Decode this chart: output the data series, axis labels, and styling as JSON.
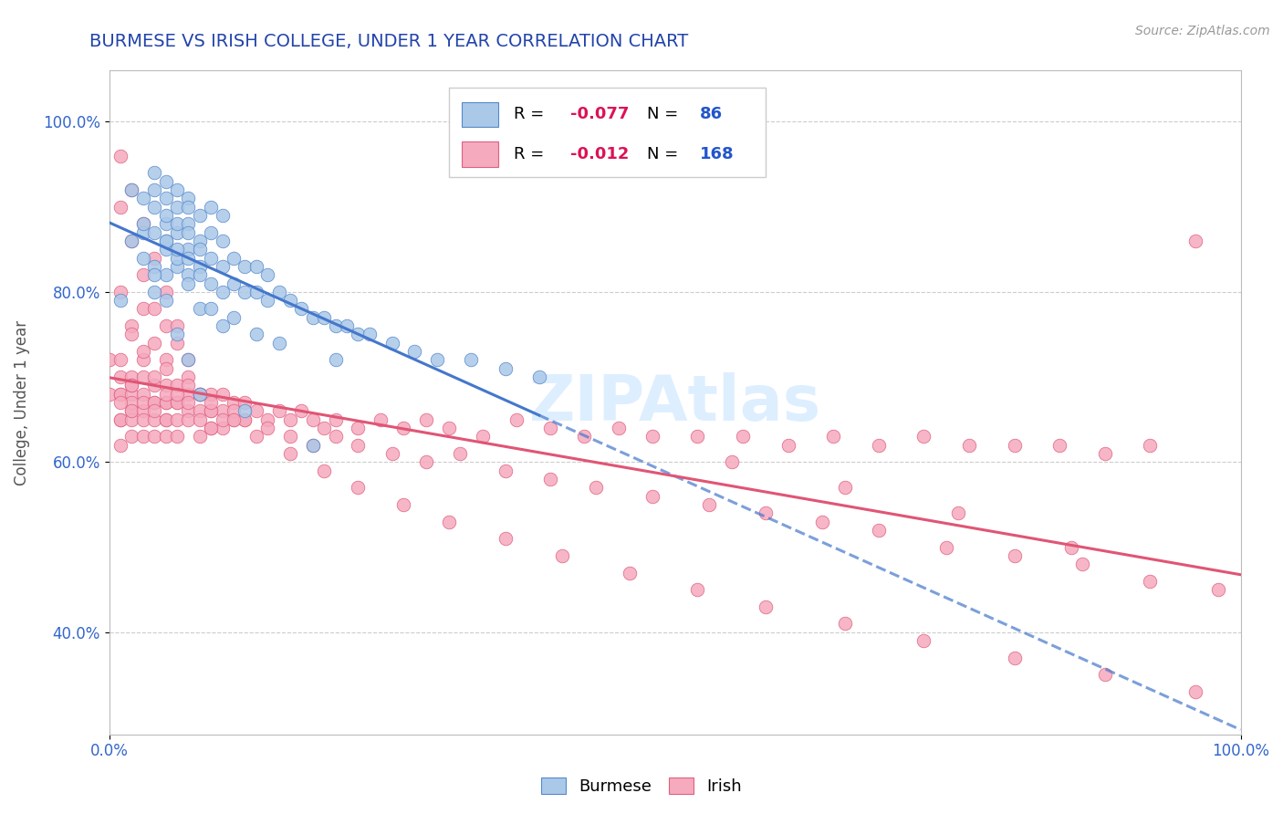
{
  "title": "BURMESE VS IRISH COLLEGE, UNDER 1 YEAR CORRELATION CHART",
  "source_text": "Source: ZipAtlas.com",
  "ylabel": "College, Under 1 year",
  "xlim": [
    0.0,
    1.0
  ],
  "ylim": [
    0.28,
    1.06
  ],
  "yticks": [
    0.4,
    0.6,
    0.8,
    1.0
  ],
  "yticklabels": [
    "40.0%",
    "60.0%",
    "80.0%",
    "100.0%"
  ],
  "burmese_color": "#aac8e8",
  "irish_color": "#f5aabe",
  "burmese_edge_color": "#5588cc",
  "irish_edge_color": "#e06080",
  "burmese_line_color": "#4477cc",
  "irish_line_color": "#e05575",
  "burmese_R": -0.077,
  "burmese_N": 86,
  "irish_R": -0.012,
  "irish_N": 168,
  "legend_R_color": "#dd1155",
  "legend_N_color": "#2255cc",
  "grid_color": "#cccccc",
  "title_color": "#2244aa",
  "source_color": "#999999",
  "watermark_color": "#ddeeff",
  "burmese_x": [
    0.01,
    0.02,
    0.02,
    0.03,
    0.03,
    0.03,
    0.04,
    0.04,
    0.04,
    0.04,
    0.04,
    0.05,
    0.05,
    0.05,
    0.05,
    0.05,
    0.05,
    0.05,
    0.06,
    0.06,
    0.06,
    0.06,
    0.06,
    0.06,
    0.07,
    0.07,
    0.07,
    0.07,
    0.07,
    0.07,
    0.07,
    0.08,
    0.08,
    0.08,
    0.08,
    0.08,
    0.09,
    0.09,
    0.09,
    0.09,
    0.1,
    0.1,
    0.1,
    0.1,
    0.11,
    0.11,
    0.12,
    0.12,
    0.13,
    0.13,
    0.14,
    0.14,
    0.15,
    0.16,
    0.17,
    0.18,
    0.19,
    0.2,
    0.21,
    0.22,
    0.23,
    0.25,
    0.27,
    0.29,
    0.32,
    0.35,
    0.38,
    0.1,
    0.15,
    0.2,
    0.08,
    0.06,
    0.07,
    0.09,
    0.11,
    0.13,
    0.04,
    0.05,
    0.06,
    0.07,
    0.03,
    0.04,
    0.05,
    0.08,
    0.12,
    0.18
  ],
  "burmese_y": [
    0.79,
    0.86,
    0.92,
    0.84,
    0.87,
    0.91,
    0.83,
    0.87,
    0.9,
    0.94,
    0.8,
    0.85,
    0.88,
    0.91,
    0.82,
    0.86,
    0.89,
    0.93,
    0.83,
    0.87,
    0.9,
    0.84,
    0.88,
    0.92,
    0.82,
    0.85,
    0.88,
    0.91,
    0.84,
    0.87,
    0.9,
    0.83,
    0.86,
    0.89,
    0.82,
    0.85,
    0.81,
    0.84,
    0.87,
    0.9,
    0.8,
    0.83,
    0.86,
    0.89,
    0.81,
    0.84,
    0.8,
    0.83,
    0.8,
    0.83,
    0.79,
    0.82,
    0.8,
    0.79,
    0.78,
    0.77,
    0.77,
    0.76,
    0.76,
    0.75,
    0.75,
    0.74,
    0.73,
    0.72,
    0.72,
    0.71,
    0.7,
    0.76,
    0.74,
    0.72,
    0.78,
    0.85,
    0.81,
    0.78,
    0.77,
    0.75,
    0.82,
    0.79,
    0.75,
    0.72,
    0.88,
    0.92,
    0.86,
    0.68,
    0.66,
    0.62
  ],
  "irish_x": [
    0.0,
    0.0,
    0.01,
    0.01,
    0.01,
    0.01,
    0.01,
    0.01,
    0.01,
    0.02,
    0.02,
    0.02,
    0.02,
    0.02,
    0.02,
    0.02,
    0.02,
    0.03,
    0.03,
    0.03,
    0.03,
    0.03,
    0.03,
    0.04,
    0.04,
    0.04,
    0.04,
    0.04,
    0.04,
    0.05,
    0.05,
    0.05,
    0.05,
    0.05,
    0.05,
    0.05,
    0.06,
    0.06,
    0.06,
    0.06,
    0.06,
    0.07,
    0.07,
    0.07,
    0.07,
    0.08,
    0.08,
    0.08,
    0.08,
    0.09,
    0.09,
    0.09,
    0.1,
    0.1,
    0.1,
    0.11,
    0.11,
    0.12,
    0.12,
    0.13,
    0.14,
    0.15,
    0.16,
    0.17,
    0.18,
    0.19,
    0.2,
    0.22,
    0.24,
    0.26,
    0.28,
    0.3,
    0.33,
    0.36,
    0.39,
    0.42,
    0.45,
    0.48,
    0.52,
    0.56,
    0.6,
    0.64,
    0.68,
    0.72,
    0.76,
    0.8,
    0.84,
    0.88,
    0.92,
    0.96,
    0.01,
    0.02,
    0.03,
    0.03,
    0.04,
    0.04,
    0.05,
    0.05,
    0.06,
    0.06,
    0.07,
    0.08,
    0.09,
    0.1,
    0.11,
    0.12,
    0.14,
    0.16,
    0.18,
    0.2,
    0.22,
    0.25,
    0.28,
    0.31,
    0.35,
    0.39,
    0.43,
    0.48,
    0.53,
    0.58,
    0.63,
    0.68,
    0.74,
    0.8,
    0.86,
    0.92,
    0.98,
    0.02,
    0.03,
    0.05,
    0.07,
    0.09,
    0.11,
    0.13,
    0.16,
    0.19,
    0.22,
    0.26,
    0.3,
    0.35,
    0.4,
    0.46,
    0.52,
    0.58,
    0.65,
    0.72,
    0.8,
    0.88,
    0.96,
    0.01,
    0.02,
    0.03,
    0.04,
    0.05,
    0.06,
    0.07,
    0.08,
    0.09,
    0.01,
    0.02,
    0.03,
    0.04,
    0.55,
    0.65,
    0.75,
    0.85,
    0.01,
    0.02
  ],
  "irish_y": [
    0.68,
    0.72,
    0.65,
    0.68,
    0.7,
    0.72,
    0.65,
    0.68,
    0.62,
    0.66,
    0.68,
    0.7,
    0.65,
    0.67,
    0.69,
    0.63,
    0.66,
    0.66,
    0.68,
    0.7,
    0.65,
    0.67,
    0.63,
    0.67,
    0.69,
    0.65,
    0.67,
    0.63,
    0.66,
    0.67,
    0.69,
    0.65,
    0.67,
    0.63,
    0.65,
    0.68,
    0.67,
    0.69,
    0.65,
    0.67,
    0.63,
    0.66,
    0.68,
    0.65,
    0.67,
    0.66,
    0.68,
    0.65,
    0.63,
    0.66,
    0.68,
    0.64,
    0.66,
    0.68,
    0.64,
    0.65,
    0.67,
    0.65,
    0.67,
    0.66,
    0.65,
    0.66,
    0.65,
    0.66,
    0.65,
    0.64,
    0.65,
    0.64,
    0.65,
    0.64,
    0.65,
    0.64,
    0.63,
    0.65,
    0.64,
    0.63,
    0.64,
    0.63,
    0.63,
    0.63,
    0.62,
    0.63,
    0.62,
    0.63,
    0.62,
    0.62,
    0.62,
    0.61,
    0.62,
    0.86,
    0.8,
    0.76,
    0.72,
    0.78,
    0.74,
    0.7,
    0.76,
    0.72,
    0.68,
    0.74,
    0.7,
    0.68,
    0.66,
    0.65,
    0.66,
    0.65,
    0.64,
    0.63,
    0.62,
    0.63,
    0.62,
    0.61,
    0.6,
    0.61,
    0.59,
    0.58,
    0.57,
    0.56,
    0.55,
    0.54,
    0.53,
    0.52,
    0.5,
    0.49,
    0.48,
    0.46,
    0.45,
    0.75,
    0.73,
    0.71,
    0.69,
    0.67,
    0.65,
    0.63,
    0.61,
    0.59,
    0.57,
    0.55,
    0.53,
    0.51,
    0.49,
    0.47,
    0.45,
    0.43,
    0.41,
    0.39,
    0.37,
    0.35,
    0.33,
    0.96,
    0.92,
    0.88,
    0.84,
    0.8,
    0.76,
    0.72,
    0.68,
    0.64,
    0.9,
    0.86,
    0.82,
    0.78,
    0.6,
    0.57,
    0.54,
    0.5,
    0.67,
    0.69
  ]
}
